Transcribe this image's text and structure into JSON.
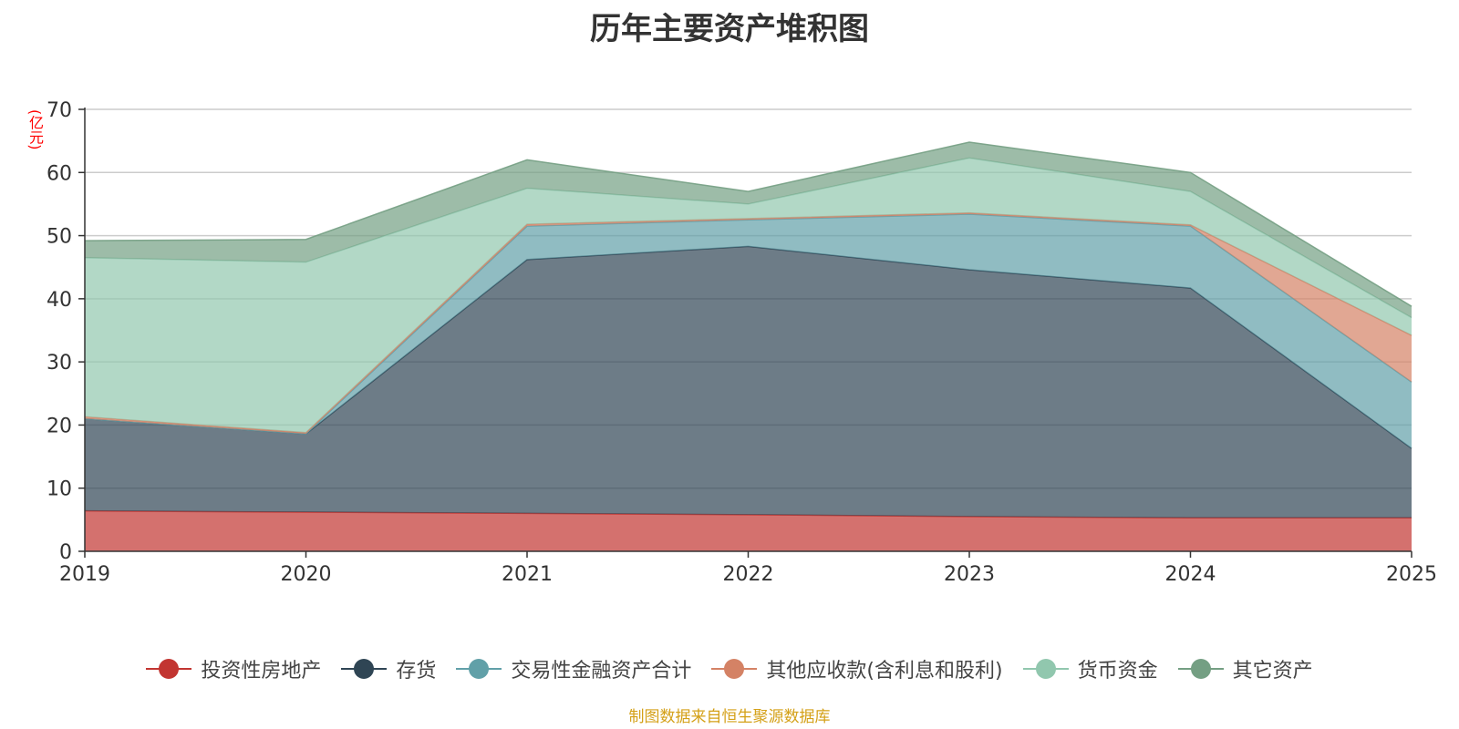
{
  "chart_data": {
    "type": "area",
    "stacked": true,
    "title": "历年主要资产堆积图",
    "ylabel": "(亿元)",
    "xlabel": "",
    "categories": [
      "2019",
      "2020",
      "2021",
      "2022",
      "2023",
      "2024",
      "2025"
    ],
    "ylim": [
      0,
      70
    ],
    "yticks": [
      0,
      10,
      20,
      30,
      40,
      50,
      60,
      70
    ],
    "grid": true,
    "legend_position": "bottom",
    "series": [
      {
        "name": "投资性房地产",
        "color": "#c23531",
        "values": [
          6.4,
          6.2,
          6.0,
          5.8,
          5.5,
          5.3,
          5.3
        ]
      },
      {
        "name": "存货",
        "color": "#2f4554",
        "values": [
          14.6,
          12.4,
          40.2,
          42.5,
          39.1,
          36.4,
          11.0
        ]
      },
      {
        "name": "交易性金融资产合计",
        "color": "#61a0a8",
        "values": [
          0,
          0,
          5.3,
          4.2,
          8.8,
          9.8,
          10.5
        ]
      },
      {
        "name": "其他应收款(含利息和股利)",
        "color": "#d48265",
        "values": [
          0.3,
          0.2,
          0.3,
          0.2,
          0.2,
          0.2,
          7.4
        ]
      },
      {
        "name": "货币资金",
        "color": "#91c7ae",
        "values": [
          25.2,
          27.0,
          5.7,
          2.3,
          8.7,
          5.3,
          2.8
        ]
      },
      {
        "name": "其它资产",
        "color": "#749f83",
        "values": [
          2.7,
          3.6,
          4.5,
          2.0,
          2.5,
          3.0,
          1.8
        ]
      }
    ]
  },
  "source_note": "制图数据来自恒生聚源数据库"
}
